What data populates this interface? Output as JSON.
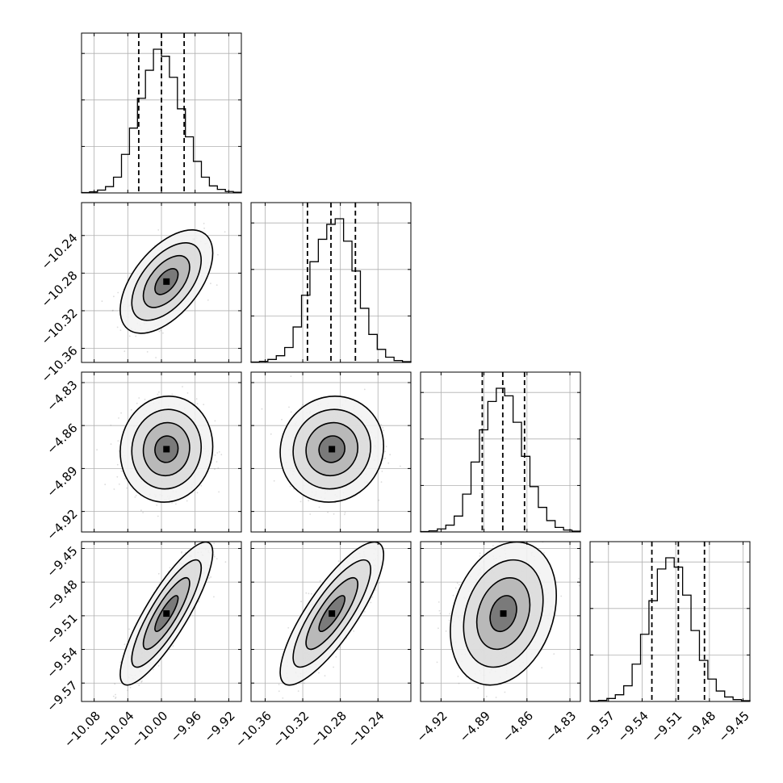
{
  "chart_data": {
    "type": "corner",
    "parameters": 4,
    "grid": true,
    "quantiles": [
      0.16,
      0.5,
      0.84
    ],
    "params": [
      {
        "index": 0,
        "range": [
          -10.095,
          -9.905
        ],
        "ticks": [
          -10.08,
          -10.04,
          -10.0,
          -9.96,
          -9.92
        ],
        "tick_labels": [
          "−10.08",
          "−10.04",
          "−10.00",
          "−9.96",
          "−9.92"
        ],
        "quantile_values": [
          -10.027,
          -10.0,
          -9.973
        ],
        "hist_values": [
          1,
          3,
          8,
          18,
          45,
          110,
          185,
          270,
          350,
          410,
          390,
          330,
          240,
          160,
          90,
          45,
          20,
          10,
          4,
          2
        ],
        "hist_ytick_fractions": [
          0.3,
          0.6,
          0.9
        ]
      },
      {
        "index": 1,
        "range": [
          -10.375,
          -10.205
        ],
        "ticks": [
          -10.36,
          -10.32,
          -10.28,
          -10.24
        ],
        "tick_labels": [
          "−10.36",
          "−10.32",
          "−10.28",
          "−10.24"
        ],
        "quantile_values": [
          -10.315,
          -10.29,
          -10.264
        ],
        "hist_values": [
          1,
          3,
          8,
          18,
          40,
          95,
          180,
          270,
          330,
          370,
          385,
          325,
          245,
          145,
          75,
          35,
          14,
          5,
          2
        ],
        "hist_ytick_fractions": [
          0.3,
          0.6,
          0.9
        ]
      },
      {
        "index": 2,
        "range": [
          -4.9343,
          -4.8227
        ],
        "ticks": [
          -4.92,
          -4.89,
          -4.86,
          -4.83
        ],
        "tick_labels": [
          "−4.92",
          "−4.89",
          "−4.86",
          "−4.83"
        ],
        "quantile_values": [
          -4.8912,
          -4.8769,
          -4.8617
        ],
        "hist_values": [
          1,
          3,
          8,
          18,
          42,
          100,
          185,
          270,
          345,
          380,
          360,
          290,
          200,
          120,
          65,
          30,
          12,
          5,
          2
        ],
        "hist_ytick_fractions": [
          0.3,
          0.6,
          0.9
        ]
      },
      {
        "index": 3,
        "range": [
          -9.5864,
          -9.4439
        ],
        "ticks": [
          -9.57,
          -9.54,
          -9.51,
          -9.48,
          -9.45
        ],
        "tick_labels": [
          "−9.57",
          "−9.54",
          "−9.51",
          "−9.48",
          "−9.45"
        ],
        "quantile_values": [
          -9.5313,
          -9.5077,
          -9.4844
        ],
        "hist_values": [
          1,
          3,
          8,
          18,
          42,
          100,
          180,
          270,
          355,
          385,
          360,
          285,
          190,
          110,
          60,
          28,
          12,
          5,
          2
        ],
        "hist_ytick_fractions": [
          0.3,
          0.6,
          0.9
        ]
      }
    ],
    "pairs": [
      {
        "x": 0,
        "y": 1,
        "mean": [
          -9.994,
          -10.289
        ],
        "std": [
          0.022,
          0.022
        ],
        "corr": 0.55
      },
      {
        "x": 0,
        "y": 2,
        "mean": [
          -9.994,
          -4.8765
        ],
        "std": [
          0.022,
          0.0148
        ],
        "corr": 0.05
      },
      {
        "x": 1,
        "y": 2,
        "mean": [
          -10.289,
          -4.8765
        ],
        "std": [
          0.022,
          0.0148
        ],
        "corr": 0.06
      },
      {
        "x": 0,
        "y": 3,
        "mean": [
          -9.994,
          -9.508
        ],
        "std": [
          0.022,
          0.0255
        ],
        "corr": 0.85
      },
      {
        "x": 1,
        "y": 3,
        "mean": [
          -10.289,
          -9.508
        ],
        "std": [
          0.022,
          0.0255
        ],
        "corr": 0.82
      },
      {
        "x": 2,
        "y": 3,
        "mean": [
          -4.8765,
          -9.508
        ],
        "std": [
          0.0148,
          0.0255
        ],
        "corr": 0.25
      }
    ],
    "contour_levels_sigma": [
      0.5,
      1.0,
      1.5,
      2.0
    ]
  }
}
